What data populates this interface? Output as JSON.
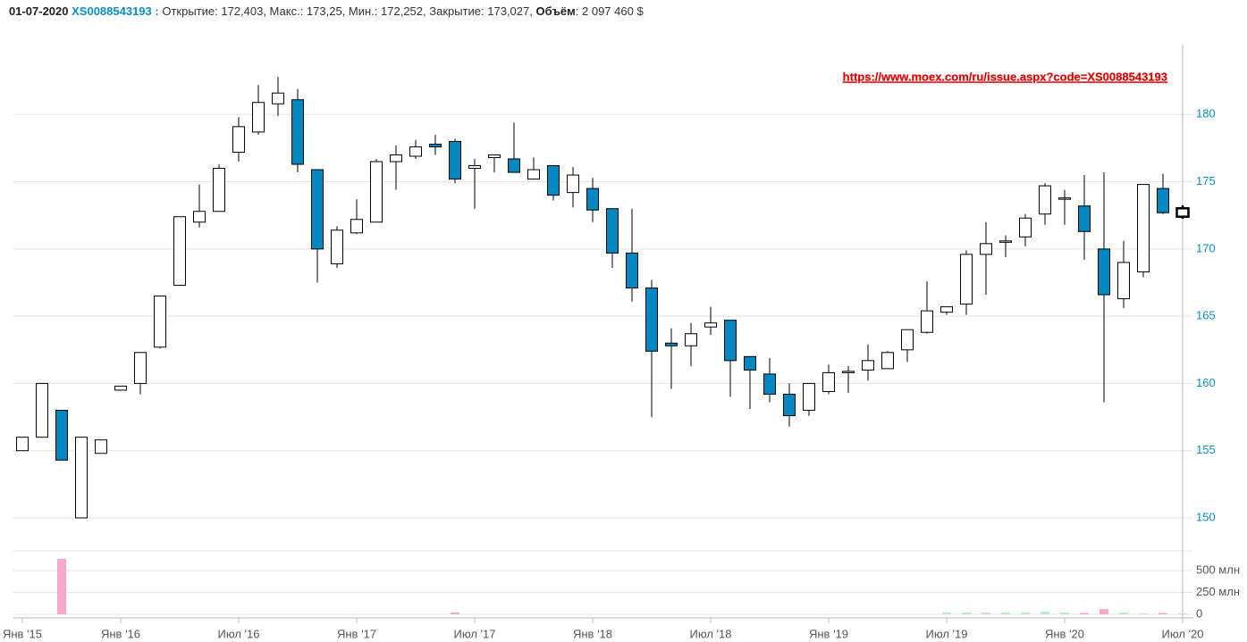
{
  "header": {
    "date": "01-07-2020",
    "code": "XS0088543193 :",
    "quote": "Открытие: 172,403, Макс.: 173,25, Мин.: 172,252, Закрытие: 173,027,",
    "volume_label": "Объём",
    "volume_value": ": 2 097 460 $"
  },
  "chart_data": {
    "type": "candlestick",
    "annotation": "https://www.moex.com/ru/issue.aspx?code=XS0088543193",
    "categories": [
      "Янв '15",
      null,
      null,
      null,
      null,
      "Янв '16",
      null,
      null,
      null,
      null,
      null,
      "Июл '16",
      null,
      null,
      null,
      null,
      null,
      "Янв '17",
      null,
      null,
      null,
      null,
      null,
      "Июл '17",
      null,
      null,
      null,
      null,
      null,
      "Янв '18",
      null,
      null,
      null,
      null,
      null,
      "Июл '18",
      null,
      null,
      null,
      null,
      null,
      "Янв '19",
      null,
      null,
      null,
      null,
      null,
      "Июл '19",
      null,
      null,
      null,
      null,
      null,
      "Янв '20",
      null,
      null,
      null,
      null,
      null,
      "Июл '20"
    ],
    "open": [
      155.0,
      156.0,
      158.0,
      150.0,
      154.8,
      159.5,
      160.0,
      162.7,
      167.3,
      172.0,
      172.8,
      177.2,
      178.7,
      180.8,
      181.1,
      175.9,
      168.9,
      171.2,
      172.0,
      176.5,
      176.9,
      177.8,
      178.0,
      176.0,
      176.8,
      176.7,
      175.2,
      176.2,
      174.2,
      174.5,
      173.0,
      169.7,
      167.1,
      163.0,
      162.8,
      164.2,
      164.7,
      162.0,
      160.7,
      159.2,
      158.0,
      159.4,
      160.8,
      161.0,
      161.1,
      162.5,
      163.8,
      165.3,
      165.9,
      169.6,
      170.5,
      170.9,
      172.6,
      173.7,
      173.2,
      170.0,
      166.3,
      168.3,
      174.5,
      172.403
    ],
    "high": [
      156.0,
      160.0,
      158.0,
      156.0,
      155.8,
      159.8,
      162.3,
      166.5,
      172.4,
      174.8,
      176.3,
      179.8,
      182.2,
      182.8,
      181.9,
      175.9,
      171.7,
      173.7,
      176.7,
      177.7,
      178.1,
      178.5,
      178.2,
      176.7,
      177.0,
      179.4,
      176.8,
      176.2,
      176.1,
      175.3,
      173.0,
      173.0,
      167.7,
      164.1,
      164.5,
      165.7,
      164.7,
      162.0,
      161.9,
      160.0,
      160.0,
      161.4,
      161.3,
      162.9,
      162.4,
      164.0,
      167.6,
      165.7,
      169.9,
      172.0,
      171.0,
      172.6,
      174.9,
      174.4,
      175.5,
      175.7,
      170.6,
      174.8,
      175.6,
      173.25
    ],
    "low": [
      155.0,
      156.0,
      154.3,
      150.0,
      154.8,
      159.5,
      159.2,
      162.6,
      167.3,
      171.6,
      172.8,
      176.5,
      178.5,
      179.9,
      175.7,
      167.5,
      168.6,
      171.1,
      172.0,
      174.4,
      176.7,
      177.0,
      174.9,
      173.0,
      175.7,
      175.7,
      175.2,
      173.6,
      173.1,
      172.0,
      168.6,
      166.1,
      157.5,
      159.6,
      161.3,
      163.6,
      159.0,
      158.1,
      158.6,
      156.8,
      157.6,
      159.2,
      159.3,
      160.2,
      161.1,
      161.6,
      163.7,
      165.1,
      165.1,
      166.6,
      169.4,
      170.2,
      171.8,
      171.8,
      169.2,
      158.6,
      165.6,
      167.9,
      172.6,
      172.252
    ],
    "close": [
      156.0,
      160.0,
      154.3,
      156.0,
      155.8,
      159.8,
      162.3,
      166.5,
      172.4,
      172.8,
      176.0,
      179.1,
      180.9,
      181.6,
      176.3,
      170.0,
      171.4,
      172.2,
      176.5,
      177.0,
      177.6,
      177.6,
      175.2,
      176.2,
      177.0,
      175.7,
      175.9,
      174.0,
      175.5,
      172.9,
      169.7,
      167.1,
      162.4,
      162.8,
      163.7,
      164.5,
      161.7,
      161.0,
      159.2,
      157.6,
      160.0,
      160.8,
      160.9,
      161.7,
      162.3,
      164.0,
      165.4,
      165.7,
      169.6,
      170.4,
      170.6,
      172.3,
      174.7,
      173.8,
      171.3,
      166.6,
      169.0,
      174.8,
      172.7,
      173.027
    ],
    "volume": [
      0,
      0,
      633000000,
      0,
      0,
      0,
      0,
      0,
      0,
      0,
      0,
      0,
      0,
      0,
      0,
      0,
      0,
      0,
      0,
      0,
      0,
      0,
      20000000,
      0,
      0,
      0,
      0,
      0,
      0,
      0,
      0,
      0,
      0,
      0,
      0,
      0,
      0,
      0,
      0,
      0,
      0,
      0,
      0,
      0,
      0,
      0,
      0,
      20000000,
      20000000,
      20000000,
      20000000,
      20000000,
      30000000,
      20000000,
      15000000,
      60000000,
      20000000,
      10000000,
      15000000,
      10000000
    ],
    "ylim": [
      150,
      185.2
    ],
    "yticks": [
      150,
      155,
      160,
      165,
      170,
      175,
      180
    ],
    "volume_ylim": [
      0,
      725000000
    ],
    "volume_yticks": [
      {
        "value": 0,
        "label": "0"
      },
      {
        "value": 250000000,
        "label": "250 млн"
      },
      {
        "value": 500000000,
        "label": "500 млн"
      }
    ],
    "up_color": "#ffffff",
    "down_color": "#0088c2",
    "up_volume_color": "#bfe8c4",
    "down_volume_color": "#f5a8c8",
    "grid": true
  }
}
